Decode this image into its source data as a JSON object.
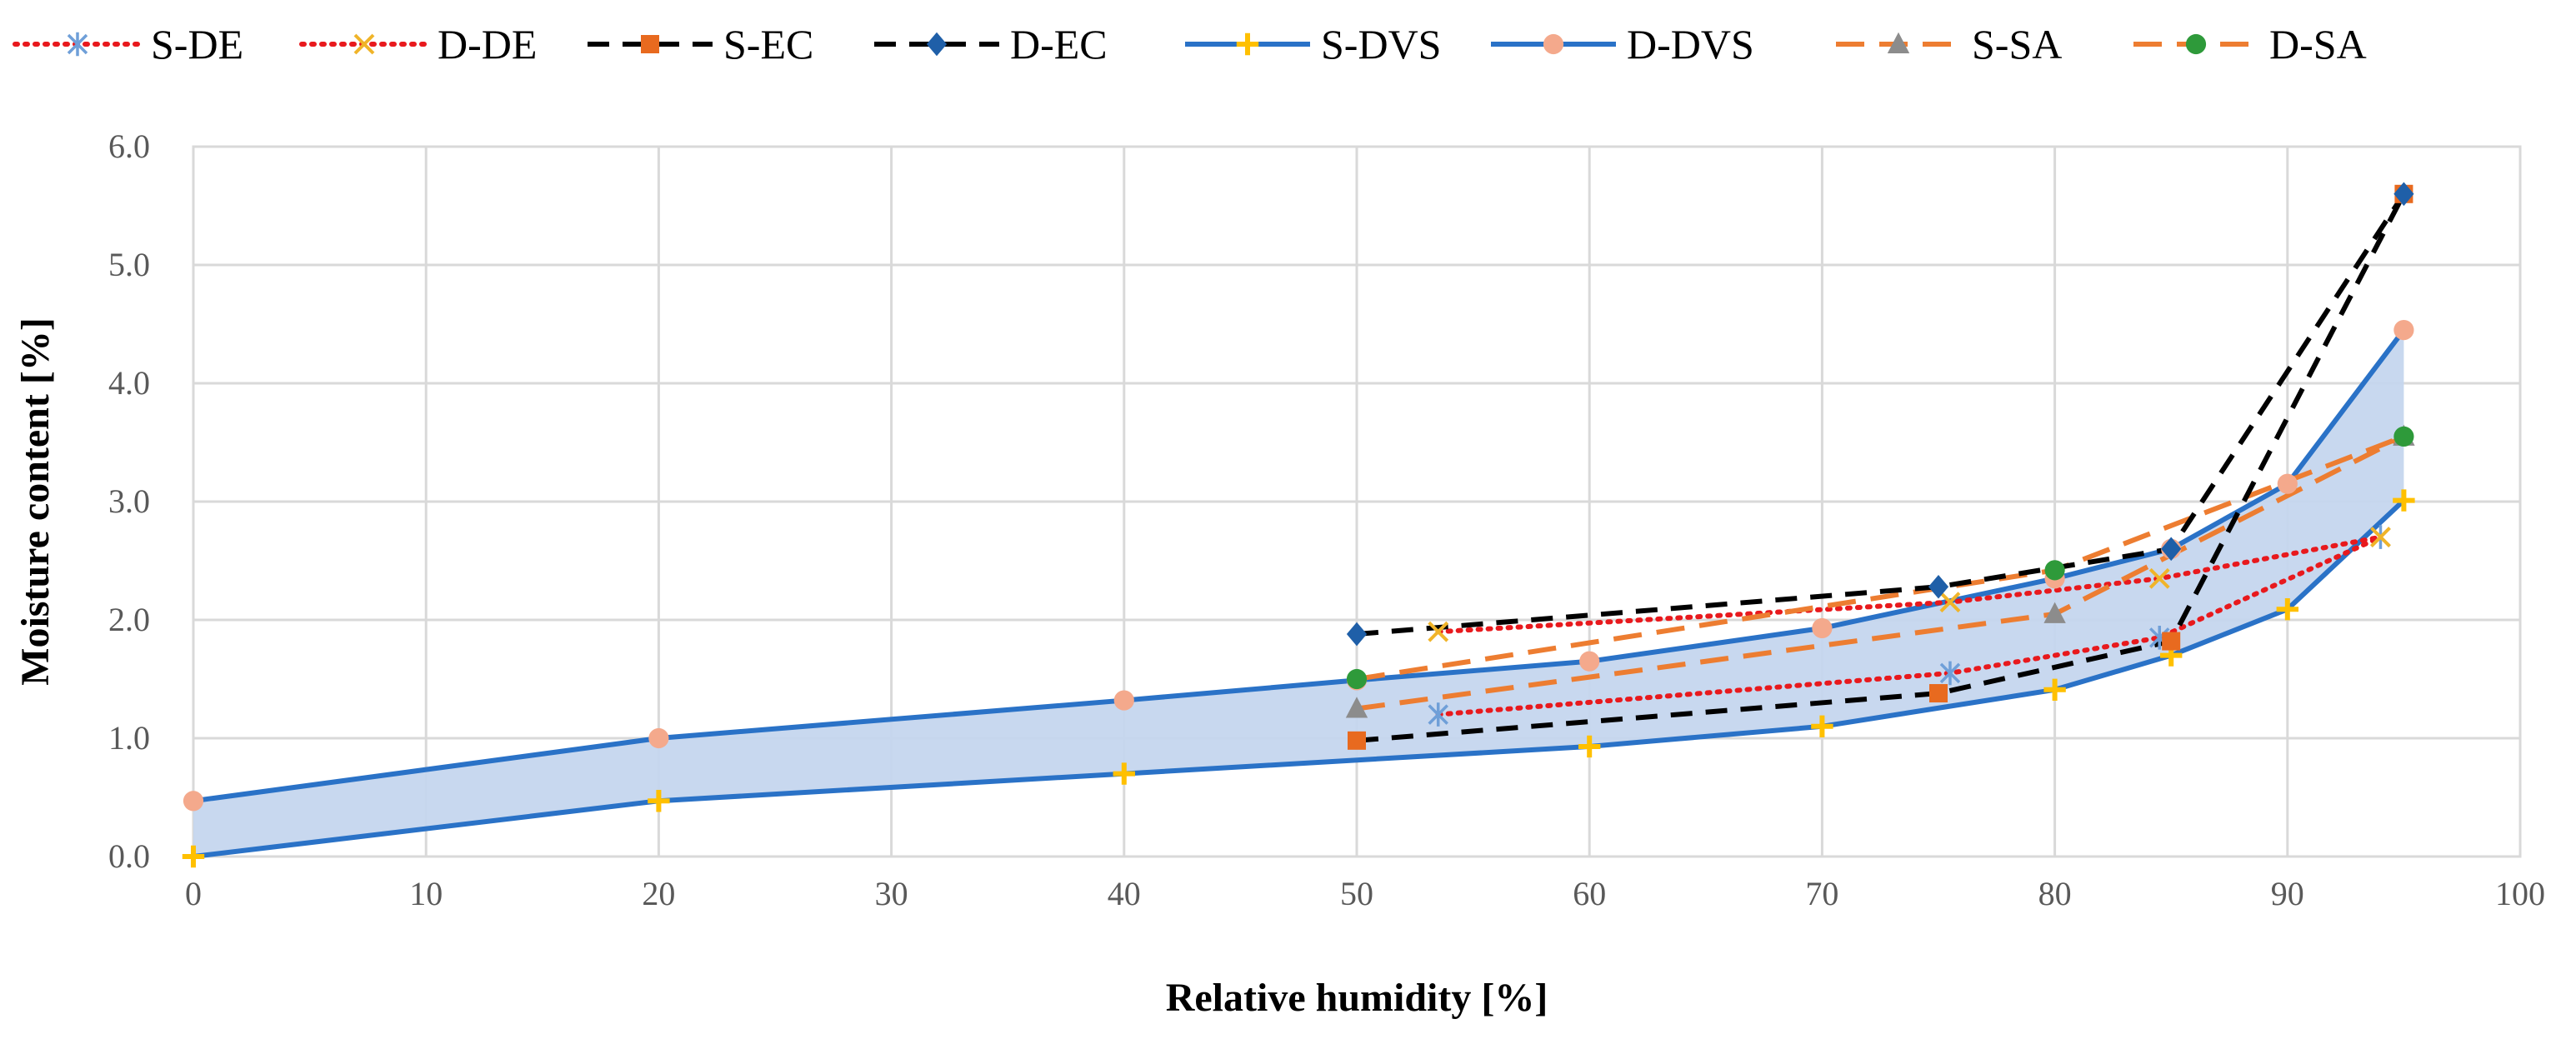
{
  "chart_data": {
    "type": "line",
    "title": "",
    "xlabel": "Relative humidity [%]",
    "ylabel": "Moisture content [%]",
    "xlim": [
      0,
      100
    ],
    "ylim": [
      0,
      6
    ],
    "xticks": [
      "0",
      "10",
      "20",
      "30",
      "40",
      "50",
      "60",
      "70",
      "80",
      "90",
      "100"
    ],
    "yticks": [
      "0.0",
      "1.0",
      "2.0",
      "3.0",
      "4.0",
      "5.0",
      "6.0"
    ],
    "grid": true,
    "legend_position": "top",
    "band": {
      "lower_series": "S-DVS",
      "upper_series": "D-DVS",
      "color": "#c5d6ee"
    },
    "series": [
      {
        "name": "S-DE",
        "color": "#e8191d",
        "line": "dotted",
        "marker": "asterisk",
        "marker_color": "#6f9fd8",
        "x": [
          53.5,
          75.5,
          84.5,
          94
        ],
        "y": [
          1.2,
          1.55,
          1.85,
          2.7
        ]
      },
      {
        "name": "D-DE",
        "color": "#e8191d",
        "line": "dotted",
        "marker": "x",
        "marker_color": "#f0b429",
        "x": [
          53.5,
          75.5,
          84.5,
          94
        ],
        "y": [
          1.9,
          2.15,
          2.35,
          2.7
        ]
      },
      {
        "name": "S-EC",
        "color": "#000000",
        "line": "dashed",
        "marker": "square",
        "marker_color": "#e86a1f",
        "x": [
          50,
          75,
          85,
          95
        ],
        "y": [
          0.98,
          1.38,
          1.82,
          5.6
        ]
      },
      {
        "name": "D-EC",
        "color": "#000000",
        "line": "dashed",
        "marker": "diamond",
        "marker_color": "#1f5fa8",
        "x": [
          50,
          75,
          85,
          95
        ],
        "y": [
          1.88,
          2.28,
          2.6,
          5.6
        ]
      },
      {
        "name": "S-DVS",
        "color": "#2a72c7",
        "line": "solid",
        "marker": "plus",
        "marker_color": "#ffc000",
        "x": [
          0,
          20,
          40,
          60,
          70,
          80,
          85,
          90,
          95
        ],
        "y": [
          0.0,
          0.47,
          0.7,
          0.93,
          1.1,
          1.41,
          1.7,
          2.09,
          3.01
        ]
      },
      {
        "name": "D-DVS",
        "color": "#2a72c7",
        "line": "solid",
        "marker": "circle",
        "marker_color": "#f4a98c",
        "x": [
          0,
          20,
          40,
          50,
          60,
          70,
          80,
          85,
          90,
          95
        ],
        "y": [
          0.47,
          1.0,
          1.32,
          1.49,
          1.65,
          1.93,
          2.35,
          2.6,
          3.15,
          4.45
        ]
      },
      {
        "name": "S-SA",
        "color": "#ed7d31",
        "line": "longdash",
        "marker": "triangle",
        "marker_color": "#8c8c8c",
        "x": [
          50,
          80,
          95
        ],
        "y": [
          1.25,
          2.05,
          3.55
        ]
      },
      {
        "name": "D-SA",
        "color": "#ed7d31",
        "line": "longdash",
        "marker": "circle",
        "marker_color": "#2e9a3a",
        "x": [
          50,
          80,
          95
        ],
        "y": [
          1.5,
          2.42,
          3.55
        ]
      }
    ]
  }
}
